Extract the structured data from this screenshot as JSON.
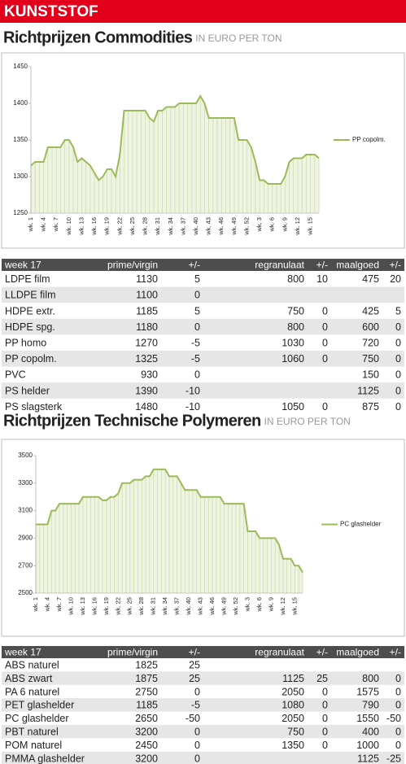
{
  "header": "KUNSTSTOF",
  "chart_data": [
    {
      "type": "line",
      "title": "Richtprijzen Commodities",
      "subtitle": "IN EURO PER TON",
      "categories": [
        "wk. 1",
        null,
        null,
        "wk. 4",
        null,
        null,
        "wk. 7",
        null,
        null,
        "wk. 10",
        null,
        null,
        "wk. 13",
        null,
        null,
        "wk. 16",
        null,
        null,
        "wk. 19",
        null,
        null,
        "wk. 22",
        null,
        null,
        "wk. 25",
        null,
        null,
        "wk. 28",
        null,
        null,
        "wk. 31",
        null,
        null,
        "wk. 34",
        null,
        null,
        "wk. 37",
        null,
        null,
        "wk. 40",
        null,
        null,
        "wk. 43",
        null,
        null,
        "wk. 46",
        null,
        null,
        "wk. 49",
        null,
        null,
        "wk. 52",
        null,
        null,
        "wk. 3",
        null,
        null,
        "wk. 6",
        null,
        null,
        "wk. 9",
        null,
        null,
        "wk. 12",
        null,
        null,
        "wk. 15",
        null,
        null
      ],
      "series": [
        {
          "name": "PP copolm.",
          "color": "#9bbb59",
          "values": [
            1315,
            1320,
            1320,
            1320,
            1340,
            1340,
            1340,
            1340,
            1350,
            1350,
            1340,
            1320,
            1325,
            1320,
            1315,
            1305,
            1295,
            1300,
            1310,
            1310,
            1300,
            1330,
            1390,
            1390,
            1390,
            1390,
            1390,
            1390,
            1380,
            1375,
            1390,
            1390,
            1395,
            1395,
            1395,
            1400,
            1400,
            1400,
            1400,
            1400,
            1410,
            1400,
            1380,
            1380,
            1380,
            1380,
            1380,
            1380,
            1380,
            1350,
            1350,
            1350,
            1340,
            1320,
            1295,
            1295,
            1290,
            1290,
            1290,
            1290,
            1300,
            1320,
            1325,
            1325,
            1325,
            1330,
            1330,
            1330,
            1325
          ]
        }
      ],
      "ylim": [
        1250,
        1450
      ],
      "yticks": [
        1250,
        1300,
        1350,
        1400,
        1450
      ],
      "grid": false,
      "legend": "right"
    },
    {
      "type": "line",
      "title": "Richtprijzen Technische Polymeren",
      "subtitle": "IN EURO PER TON",
      "categories": [
        "wk. 1",
        null,
        null,
        "wk. 4",
        null,
        null,
        "wk. 7",
        null,
        null,
        "wk. 10",
        null,
        null,
        "wk. 13",
        null,
        null,
        "wk. 16",
        null,
        null,
        "wk. 19",
        null,
        null,
        "wk. 22",
        null,
        null,
        "wk. 25",
        null,
        null,
        "wk. 28",
        null,
        null,
        "wk. 31",
        null,
        null,
        "wk. 34",
        null,
        null,
        "wk. 37",
        null,
        null,
        "wk. 40",
        null,
        null,
        "wk. 43",
        null,
        null,
        "wk. 46",
        null,
        null,
        "wk. 49",
        null,
        null,
        "wk. 52",
        null,
        null,
        "wk. 3",
        null,
        null,
        "wk. 6",
        null,
        null,
        "wk. 9",
        null,
        null,
        "wk. 12",
        null,
        null,
        "wk. 15",
        null,
        null
      ],
      "series": [
        {
          "name": "PC glashelder",
          "color": "#9bbb59",
          "values": [
            3000,
            3000,
            3000,
            3000,
            3100,
            3100,
            3150,
            3150,
            3150,
            3150,
            3150,
            3150,
            3200,
            3200,
            3200,
            3200,
            3200,
            3175,
            3175,
            3200,
            3200,
            3225,
            3300,
            3300,
            3300,
            3325,
            3325,
            3325,
            3350,
            3350,
            3400,
            3400,
            3400,
            3400,
            3350,
            3350,
            3350,
            3300,
            3250,
            3250,
            3250,
            3250,
            3200,
            3200,
            3200,
            3200,
            3200,
            3200,
            3150,
            3150,
            3150,
            3150,
            3150,
            3150,
            2950,
            2950,
            2950,
            2900,
            2900,
            2900,
            2900,
            2900,
            2850,
            2750,
            2750,
            2750,
            2700,
            2700,
            2650
          ]
        }
      ],
      "ylim": [
        2500,
        3500
      ],
      "yticks": [
        2500,
        2700,
        2900,
        3100,
        3300,
        3500
      ],
      "grid": false,
      "legend": "right"
    }
  ],
  "tables": [
    {
      "columns": [
        "week 17",
        "prime/virgin",
        "+/-",
        "regranulaat",
        "+/-",
        "maalgoed",
        "+/-"
      ],
      "rows": [
        [
          "LDPE film",
          1130,
          5,
          800,
          10,
          475,
          20
        ],
        [
          "LLDPE film",
          1100,
          0,
          null,
          null,
          null,
          null
        ],
        [
          "HDPE extr.",
          1185,
          5,
          750,
          0,
          425,
          5
        ],
        [
          "HDPE spg.",
          1180,
          0,
          800,
          0,
          600,
          0
        ],
        [
          "PP homo",
          1270,
          -5,
          1030,
          0,
          720,
          0
        ],
        [
          "PP copolm.",
          1325,
          -5,
          1060,
          0,
          750,
          0
        ],
        [
          "PVC",
          930,
          0,
          null,
          null,
          150,
          0
        ],
        [
          "PS helder",
          1390,
          -10,
          null,
          null,
          1125,
          0
        ],
        [
          "PS slagsterk",
          1480,
          -10,
          1050,
          0,
          875,
          0
        ]
      ]
    },
    {
      "columns": [
        "week 17",
        "prime/virgin",
        "+/-",
        "regranulaat",
        "+/-",
        "maalgoed",
        "+/-"
      ],
      "rows": [
        [
          "ABS naturel",
          1825,
          25,
          null,
          null,
          null,
          null
        ],
        [
          "ABS zwart",
          1875,
          25,
          1125,
          25,
          800,
          0
        ],
        [
          "PA 6 naturel",
          2750,
          0,
          2050,
          0,
          1575,
          0
        ],
        [
          "PET glashelder",
          1185,
          -5,
          1080,
          0,
          790,
          0
        ],
        [
          "PC glashelder",
          2650,
          -50,
          2050,
          0,
          1550,
          -50
        ],
        [
          "PBT naturel",
          3200,
          0,
          750,
          0,
          400,
          0
        ],
        [
          "POM naturel",
          2450,
          0,
          1350,
          0,
          1000,
          0
        ],
        [
          "PMMA glashelder",
          3200,
          0,
          null,
          null,
          1125,
          -25
        ]
      ]
    }
  ]
}
